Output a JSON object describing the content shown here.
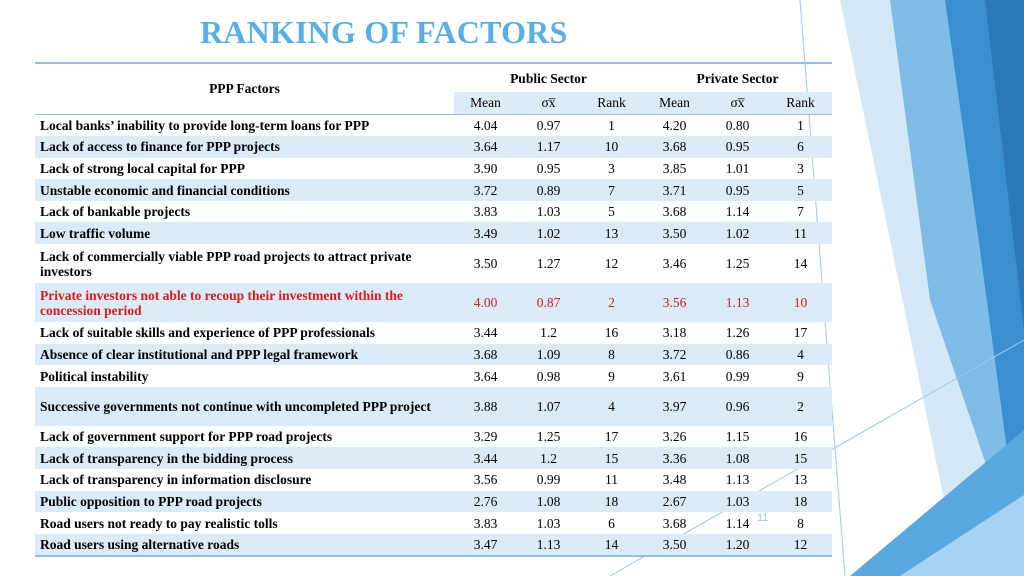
{
  "title": "RANKING OF FACTORS",
  "colors": {
    "title": "#5aaee6",
    "highlight_text": "#d91b1b",
    "row_band": "#dcebf8",
    "rule": "#8fbfe6"
  },
  "header": {
    "factor_col": "PPP Factors",
    "public": "Public Sector",
    "private": "Private Sector",
    "sub": [
      "Mean",
      "σx̅",
      "Rank",
      "Mean",
      "σx̅",
      "Rank"
    ]
  },
  "rows": [
    {
      "factor": "Local banks’ inability to provide long-term loans for PPP",
      "v": [
        "4.04",
        "0.97",
        "1",
        "4.20",
        "0.80",
        "1"
      ]
    },
    {
      "factor": "Lack of access to finance for PPP projects",
      "v": [
        "3.64",
        "1.17",
        "10",
        "3.68",
        "0.95",
        "6"
      ]
    },
    {
      "factor": "Lack of strong local capital for PPP",
      "v": [
        "3.90",
        "0.95",
        "3",
        "3.85",
        "1.01",
        "3"
      ]
    },
    {
      "factor": "Unstable economic and financial conditions",
      "v": [
        "3.72",
        "0.89",
        "7",
        "3.71",
        "0.95",
        "5"
      ]
    },
    {
      "factor": "Lack of bankable projects",
      "v": [
        "3.83",
        "1.03",
        "5",
        "3.68",
        "1.14",
        "7"
      ]
    },
    {
      "factor": "Low traffic volume",
      "v": [
        "3.49",
        "1.02",
        "13",
        "3.50",
        "1.02",
        "11"
      ]
    },
    {
      "factor": "Lack of commercially viable PPP road projects to attract private investors",
      "v": [
        "3.50",
        "1.27",
        "12",
        "3.46",
        "1.25",
        "14"
      ]
    },
    {
      "factor": "Private investors not able to recoup their investment within the concession period",
      "v": [
        "4.00",
        "0.87",
        "2",
        "3.56",
        "1.13",
        "10"
      ]
    },
    {
      "factor": "Lack of suitable skills and experience of PPP professionals",
      "v": [
        "3.44",
        "1.2",
        "16",
        "3.18",
        "1.26",
        "17"
      ]
    },
    {
      "factor": "Absence of clear institutional and PPP legal framework",
      "v": [
        "3.68",
        "1.09",
        "8",
        "3.72",
        "0.86",
        "4"
      ]
    },
    {
      "factor": "Political instability",
      "v": [
        "3.64",
        "0.98",
        "9",
        "3.61",
        "0.99",
        "9"
      ]
    },
    {
      "factor": "Successive governments not continue with uncompleted PPP project",
      "v": [
        "3.88",
        "1.07",
        "4",
        "3.97",
        "0.96",
        "2"
      ]
    },
    {
      "factor": "Lack of government support for PPP road projects",
      "v": [
        "3.29",
        "1.25",
        "17",
        "3.26",
        "1.15",
        "16"
      ]
    },
    {
      "factor": "Lack of transparency in the bidding process",
      "v": [
        "3.44",
        "1.2",
        "15",
        "3.36",
        "1.08",
        "15"
      ]
    },
    {
      "factor": "Lack of transparency in information disclosure",
      "v": [
        "3.56",
        "0.99",
        "11",
        "3.48",
        "1.13",
        "13"
      ]
    },
    {
      "factor": "Public opposition to PPP road projects",
      "v": [
        "2.76",
        "1.08",
        "18",
        "2.67",
        "1.03",
        "18"
      ]
    },
    {
      "factor": "Road users not ready to pay realistic tolls",
      "v": [
        "3.83",
        "1.03",
        "6",
        "3.68",
        "1.14",
        "8"
      ]
    },
    {
      "factor": "Road users using alternative roads",
      "v": [
        "3.47",
        "1.13",
        "14",
        "3.50",
        "1.20",
        "12"
      ]
    }
  ],
  "page_number": "11"
}
